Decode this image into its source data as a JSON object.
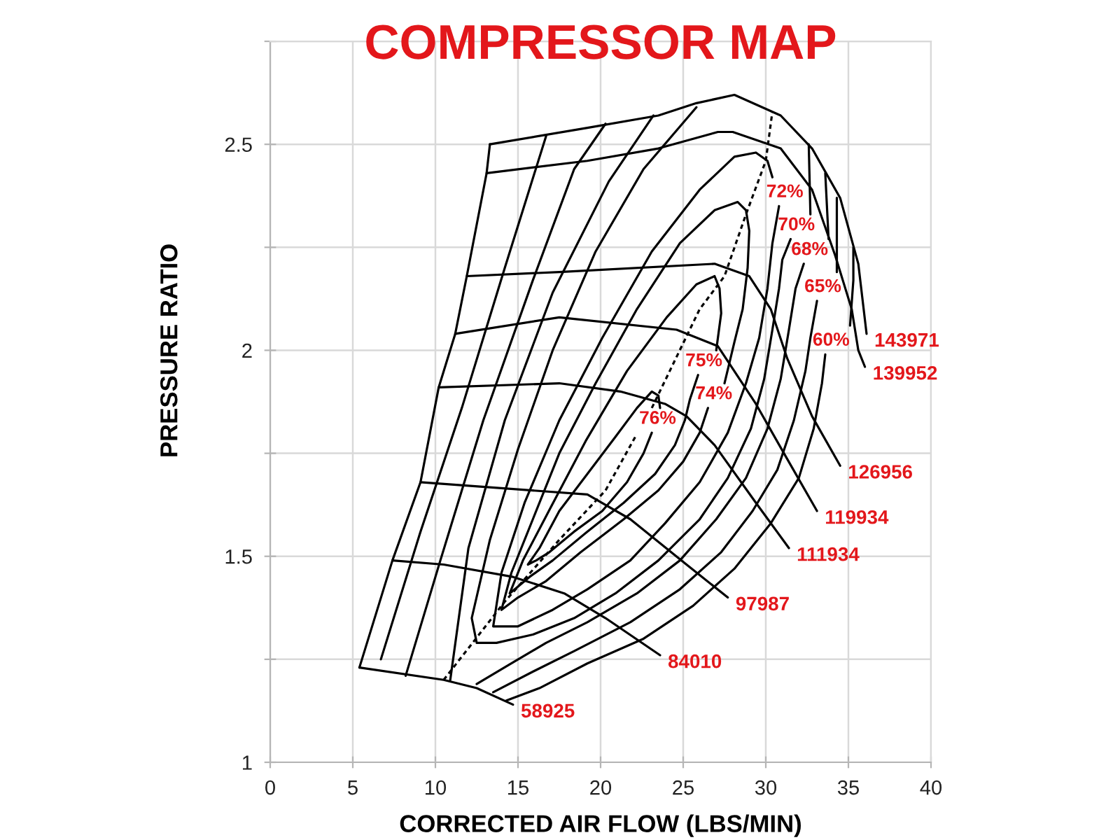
{
  "chart_data": {
    "type": "line",
    "title": "COMPRESSOR MAP",
    "xlabel": "CORRECTED AIR FLOW (LBS/MIN)",
    "ylabel": "PRESSURE RATIO",
    "xlim": [
      0,
      40
    ],
    "ylim": [
      1,
      2.75
    ],
    "xticks": [
      0,
      5,
      10,
      15,
      20,
      25,
      30,
      35,
      40
    ],
    "yticks": [
      1,
      {
        "value": 1.25,
        "label": null
      },
      1.5,
      {
        "value": 1.75,
        "label": null
      },
      2,
      {
        "value": 2.25,
        "label": null
      },
      2.5,
      {
        "value": 2.75,
        "label": null
      }
    ],
    "grid": true,
    "series": [
      {
        "color": "#000000",
        "x": [
          13.3,
          13.1,
          11.9,
          11.2,
          10.2,
          9.1,
          7.4,
          5.4
        ],
        "values": [
          2.5,
          2.43,
          2.18,
          2.04,
          1.91,
          1.68,
          1.49,
          1.23
        ]
      },
      {
        "color": "#000000",
        "x": [
          13.3,
          19.2,
          23.5,
          25.8,
          28.1,
          30.9,
          32.8,
          34.5,
          35.6,
          36.1
        ],
        "values": [
          2.5,
          2.54,
          2.57,
          2.6,
          2.62,
          2.57,
          2.49,
          2.37,
          2.21,
          2.04
        ]
      },
      {
        "color": "#000000",
        "x": [
          13.1,
          19.2,
          23.5,
          27.1,
          28.0,
          30.9,
          32.8,
          34.2,
          35.2,
          35.6,
          36.0
        ],
        "values": [
          2.43,
          2.46,
          2.49,
          2.53,
          2.53,
          2.49,
          2.39,
          2.23,
          2.1,
          2.0,
          1.96
        ]
      },
      {
        "color": "#000000",
        "x": [
          11.9,
          17.5,
          26.9,
          29.0,
          30.3,
          31.3,
          32.8,
          34.5
        ],
        "values": [
          2.18,
          2.19,
          2.21,
          2.18,
          2.1,
          1.98,
          1.84,
          1.72
        ]
      },
      {
        "color": "#000000",
        "x": [
          11.2,
          17.5,
          24.6,
          27.1,
          29.4,
          31.1,
          33.1
        ],
        "values": [
          2.04,
          2.08,
          2.05,
          2.01,
          1.87,
          1.75,
          1.61
        ]
      },
      {
        "color": "#000000",
        "x": [
          10.2,
          17.5,
          21.2,
          23.9,
          25.2,
          26.9,
          29.4,
          31.4
        ],
        "values": [
          1.91,
          1.92,
          1.9,
          1.87,
          1.84,
          1.77,
          1.63,
          1.52
        ]
      },
      {
        "color": "#000000",
        "x": [
          9.1,
          19.2,
          21.8,
          25.2,
          27.7
        ],
        "values": [
          1.68,
          1.65,
          1.59,
          1.48,
          1.4
        ]
      },
      {
        "color": "#000000",
        "x": [
          7.4,
          10.5,
          14.7,
          17.8,
          20.3,
          23.6
        ],
        "values": [
          1.49,
          1.48,
          1.45,
          1.41,
          1.35,
          1.26
        ]
      },
      {
        "color": "#000000",
        "x": [
          5.4,
          10.5,
          12.5,
          14.7
        ],
        "values": [
          1.23,
          1.2,
          1.18,
          1.14
        ]
      },
      {
        "color": "#000000",
        "line_style": "dashed",
        "x": [
          10.5,
          14.2,
          17.5,
          20.3,
          22.1,
          null,
          23.1,
          26.0,
          27.5,
          28.8,
          30.0,
          30.4
        ],
        "values": [
          1.2,
          1.39,
          1.54,
          1.66,
          1.79,
          null,
          1.86,
          2.1,
          2.18,
          2.33,
          2.46,
          2.58
        ]
      },
      {
        "color": "#000000",
        "x": [
          33.6,
          33.4,
          32.9,
          32.0,
          30.3,
          28.1,
          25.6,
          22.6,
          19.2,
          16.3,
          14.3,
          null,
          6.7,
          9.1,
          11.6,
          14.2,
          16.7,
          null,
          35.1,
          35.3,
          35.3
        ],
        "values": [
          1.99,
          1.92,
          1.81,
          1.69,
          1.58,
          1.47,
          1.38,
          1.3,
          1.24,
          1.18,
          1.15,
          null,
          1.25,
          1.56,
          1.86,
          2.2,
          2.52,
          null,
          2.06,
          2.17,
          2.25
        ]
      },
      {
        "color": "#000000",
        "x": [
          33.1,
          32.7,
          32.4,
          31.7,
          30.7,
          29.2,
          27.3,
          24.8,
          21.8,
          18.4,
          15.9,
          13.5,
          null,
          8.2,
          10.3,
          12.9,
          15.9,
          18.4,
          20.3,
          null,
          34.3,
          34.3
        ],
        "values": [
          2.12,
          2.03,
          1.95,
          1.83,
          1.71,
          1.61,
          1.51,
          1.42,
          1.34,
          1.27,
          1.22,
          1.17,
          null,
          1.21,
          1.49,
          1.83,
          2.17,
          2.44,
          2.55,
          null,
          2.19,
          2.37
        ]
      },
      {
        "color": "#000000",
        "x": [
          32.3,
          31.8,
          31.4,
          30.9,
          30.1,
          28.8,
          27.0,
          24.8,
          22.2,
          19.2,
          16.7,
          14.6,
          12.5,
          null,
          10.9,
          12.0,
          14.2,
          17.1,
          20.5,
          23.2,
          null,
          33.8,
          33.6
        ],
        "values": [
          2.21,
          2.15,
          2.05,
          1.93,
          1.81,
          1.69,
          1.59,
          1.49,
          1.41,
          1.34,
          1.29,
          1.24,
          1.19,
          null,
          1.2,
          1.52,
          1.83,
          2.14,
          2.41,
          2.57,
          null,
          2.27,
          2.43
        ]
      },
      {
        "color": "#000000",
        "x": [
          31.5,
          31.0,
          30.8,
          30.4,
          29.9,
          29.1,
          27.7,
          26.0,
          23.5,
          20.9,
          18.4,
          15.9,
          13.7,
          12.5,
          12.2,
          13.3,
          15.0,
          17.1,
          19.7,
          22.6,
          25.8,
          null,
          32.7,
          32.6
        ],
        "values": [
          2.27,
          2.22,
          2.15,
          2.05,
          1.93,
          1.81,
          1.69,
          1.59,
          1.49,
          1.41,
          1.35,
          1.31,
          1.29,
          1.29,
          1.35,
          1.54,
          1.76,
          2.0,
          2.24,
          2.44,
          2.59,
          null,
          2.33,
          2.5
        ]
      },
      {
        "color": "#000000",
        "x": [
          30.8,
          30.4,
          30.1,
          29.6,
          28.8,
          27.7,
          26.0,
          23.9,
          21.8,
          19.2,
          17.1,
          15.0,
          13.5,
          14.0,
          15.4,
          17.5,
          20.1,
          23.1,
          26.0,
          28.1,
          29.4,
          30.1,
          30.4
        ],
        "values": [
          2.35,
          2.26,
          2.15,
          2.03,
          1.92,
          1.8,
          1.68,
          1.58,
          1.49,
          1.42,
          1.37,
          1.33,
          1.33,
          1.46,
          1.63,
          1.83,
          2.03,
          2.24,
          2.39,
          2.47,
          2.48,
          2.46,
          2.42
        ]
      },
      {
        "color": "#000000",
        "x": [
          26.5,
          26.0,
          25.0,
          23.5,
          21.4,
          18.8,
          16.7,
          15.0,
          14.0,
          14.6,
          15.9,
          17.5,
          19.7,
          22.2,
          24.8,
          26.9,
          28.3,
          28.8,
          29.0,
          28.9,
          28.6,
          28.1,
          27.5
        ],
        "values": [
          1.86,
          1.8,
          1.73,
          1.66,
          1.59,
          1.51,
          1.44,
          1.4,
          1.37,
          1.46,
          1.59,
          1.75,
          1.92,
          2.1,
          2.26,
          2.34,
          2.36,
          2.34,
          2.29,
          2.2,
          2.1,
          2.02,
          1.92
        ]
      },
      {
        "color": "#000000",
        "x": [
          25.9,
          25.4,
          25.1,
          24.5,
          23.3,
          21.4,
          19.2,
          17.1,
          15.7,
          14.5,
          15.3,
          17.0,
          19.1,
          21.6,
          24.0,
          25.8,
          26.9,
          27.2,
          27.3,
          27.0
        ],
        "values": [
          1.94,
          1.88,
          1.83,
          1.77,
          1.7,
          1.63,
          1.56,
          1.49,
          1.45,
          1.41,
          1.49,
          1.62,
          1.78,
          1.95,
          2.08,
          2.16,
          2.18,
          2.15,
          2.09,
          2.0
        ]
      },
      {
        "color": "#000000",
        "x": [
          23.1,
          22.6,
          21.6,
          20.1,
          18.4,
          16.9,
          16.1,
          15.6,
          16.3,
          17.5,
          19.2,
          20.9,
          22.2,
          23.1,
          23.5,
          23.6
        ],
        "values": [
          1.8,
          1.75,
          1.68,
          1.61,
          1.56,
          1.51,
          1.49,
          1.48,
          1.52,
          1.61,
          1.7,
          1.79,
          1.86,
          1.9,
          1.89,
          1.86
        ]
      }
    ],
    "annotations": [
      {
        "text": "143971",
        "x": 36.1,
        "y": 2.04
      },
      {
        "text": "139952",
        "x": 36.0,
        "y": 1.96
      },
      {
        "text": "126956",
        "x": 34.5,
        "y": 1.72
      },
      {
        "text": "119934",
        "x": 33.1,
        "y": 1.61
      },
      {
        "text": "111934",
        "x": 31.4,
        "y": 1.52
      },
      {
        "text": "97987",
        "x": 27.7,
        "y": 1.4
      },
      {
        "text": "84010",
        "x": 23.6,
        "y": 1.26
      },
      {
        "text": "58925",
        "x": 14.7,
        "y": 1.14
      },
      {
        "text": "72%",
        "x": 30.8,
        "y": 2.35
      },
      {
        "text": "70%",
        "x": 31.5,
        "y": 2.27
      },
      {
        "text": "68%",
        "x": 32.3,
        "y": 2.21
      },
      {
        "text": "65%",
        "x": 33.1,
        "y": 2.12
      },
      {
        "text": "60%",
        "x": 33.6,
        "y": 1.99
      },
      {
        "text": "75%",
        "x": 25.9,
        "y": 1.94
      },
      {
        "text": "74%",
        "x": 26.5,
        "y": 1.86
      },
      {
        "text": "76%",
        "x": 23.1,
        "y": 1.8
      }
    ]
  }
}
